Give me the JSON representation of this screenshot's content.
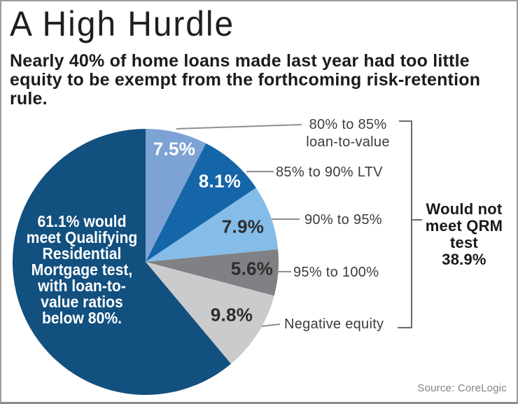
{
  "header": {
    "title": "A High Hurdle",
    "subtitle_lines": [
      "Nearly 40% of home loans made last year had too little",
      "equity to be exempt from the forthcoming risk-retention",
      "rule."
    ]
  },
  "chart_data": {
    "type": "pie",
    "title": "A High Hurdle",
    "start_angle_deg": 0,
    "direction": "clockwise",
    "slices": [
      {
        "label": "80% to 85% loan-to-value",
        "value": 7.5,
        "display": "7.5%",
        "color": "#7da3d5"
      },
      {
        "label": "85% to 90% LTV",
        "value": 8.1,
        "display": "8.1%",
        "color": "#1565a9"
      },
      {
        "label": "90% to 95%",
        "value": 7.9,
        "display": "7.9%",
        "color": "#85bce8"
      },
      {
        "label": "95% to 100%",
        "value": 5.6,
        "display": "5.6%",
        "color": "#7f8184"
      },
      {
        "label": "Negative equity",
        "value": 9.8,
        "display": "9.8%",
        "color": "#c9cbcd"
      },
      {
        "label": "Would meet QRM test",
        "value": 61.1,
        "display": "61.1%",
        "color": "#12507f"
      }
    ],
    "center_label_lines": [
      "61.1% would",
      "meet Qualifying",
      "Residential",
      "Mortgage test,",
      "with loan-to-",
      "value ratios",
      "below 80%."
    ],
    "callouts": {
      "c1_line1": "80% to 85%",
      "c1_line2": "loan-to-value",
      "c2": "85% to 90% LTV",
      "c3": "90% to 95%",
      "c4": "95% to 100%",
      "c5": "Negative equity"
    },
    "bracket_annotation": {
      "lines": [
        "Would not",
        "meet QRM",
        "test",
        "38.9%"
      ],
      "total": "38.9%"
    }
  },
  "footer": {
    "source": "Source: CoreLogic"
  }
}
